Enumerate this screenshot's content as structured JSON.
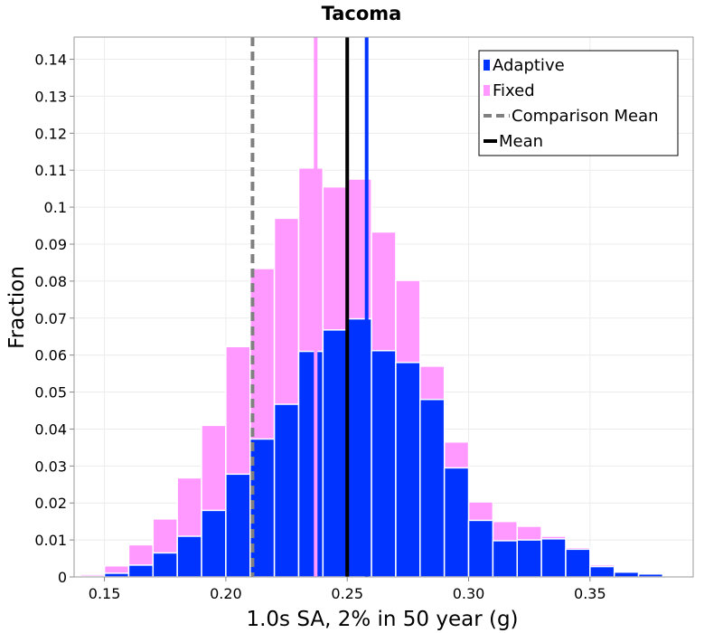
{
  "chart_data": {
    "type": "bar",
    "title": "Tacoma",
    "xlabel": "1.0s SA, 2% in 50 year (g)",
    "ylabel": "Fraction",
    "xlim": [
      0.1375,
      0.3925
    ],
    "ylim": [
      0,
      0.146
    ],
    "bin_width": 0.01,
    "x_ticks": [
      "0.15",
      "0.20",
      "0.25",
      "0.30",
      "0.35"
    ],
    "x_tick_values": [
      0.15,
      0.2,
      0.25,
      0.3,
      0.35
    ],
    "y_ticks": [
      "0",
      "0.01",
      "0.02",
      "0.03",
      "0.04",
      "0.05",
      "0.06",
      "0.07",
      "0.08",
      "0.09",
      "0.1",
      "0.11",
      "0.12",
      "0.13",
      "0.14"
    ],
    "y_tick_values": [
      0,
      0.01,
      0.02,
      0.03,
      0.04,
      0.05,
      0.06,
      0.07,
      0.08,
      0.09,
      0.1,
      0.11,
      0.12,
      0.13,
      0.14
    ],
    "grid": true,
    "legend_position": "top-right",
    "series": [
      {
        "name": "Adaptive",
        "color": "#0033ff",
        "x": [
          0.145,
          0.155,
          0.165,
          0.175,
          0.185,
          0.195,
          0.205,
          0.215,
          0.225,
          0.235,
          0.245,
          0.255,
          0.265,
          0.275,
          0.285,
          0.295,
          0.305,
          0.315,
          0.325,
          0.335,
          0.345,
          0.355,
          0.365,
          0.375,
          0.385
        ],
        "values": [
          0.0002,
          0.001,
          0.0032,
          0.0065,
          0.011,
          0.018,
          0.0278,
          0.0373,
          0.0467,
          0.061,
          0.0668,
          0.0698,
          0.0612,
          0.058,
          0.048,
          0.0295,
          0.0153,
          0.0098,
          0.01,
          0.0103,
          0.0075,
          0.0028,
          0.0013,
          0.0008,
          0.0003
        ]
      },
      {
        "name": "Fixed",
        "color": "#ff99ff",
        "x": [
          0.145,
          0.155,
          0.165,
          0.175,
          0.185,
          0.195,
          0.205,
          0.215,
          0.225,
          0.235,
          0.245,
          0.255,
          0.265,
          0.275,
          0.285,
          0.295,
          0.305,
          0.315,
          0.325,
          0.335,
          0.345,
          0.355,
          0.365,
          0.375,
          0.385
        ],
        "values": [
          0.0007,
          0.003,
          0.0087,
          0.0157,
          0.0268,
          0.041,
          0.0623,
          0.0834,
          0.097,
          0.1106,
          0.1055,
          0.1076,
          0.0933,
          0.0802,
          0.057,
          0.0365,
          0.0203,
          0.015,
          0.0137,
          0.011,
          0.008,
          0.0033,
          0.0013,
          0.0008,
          0.0003
        ]
      }
    ],
    "reference_lines": [
      {
        "name": "Comparison Mean",
        "x": 0.211,
        "color": "#808080",
        "style": "dashed"
      },
      {
        "name": "Mean",
        "x": 0.25,
        "color": "#000000",
        "style": "solid"
      },
      {
        "name": "Adaptive",
        "x": 0.258,
        "color": "#0033ff",
        "style": "solid"
      },
      {
        "name": "Fixed",
        "x": 0.237,
        "color": "#ff99ff",
        "style": "solid"
      }
    ],
    "legend": [
      {
        "label": "Adaptive",
        "kind": "box",
        "color": "#0033ff"
      },
      {
        "label": "Fixed",
        "kind": "box",
        "color": "#ff99ff"
      },
      {
        "label": "Comparison Mean",
        "kind": "dash",
        "color": "#808080"
      },
      {
        "label": "Mean",
        "kind": "line",
        "color": "#000000"
      }
    ]
  }
}
